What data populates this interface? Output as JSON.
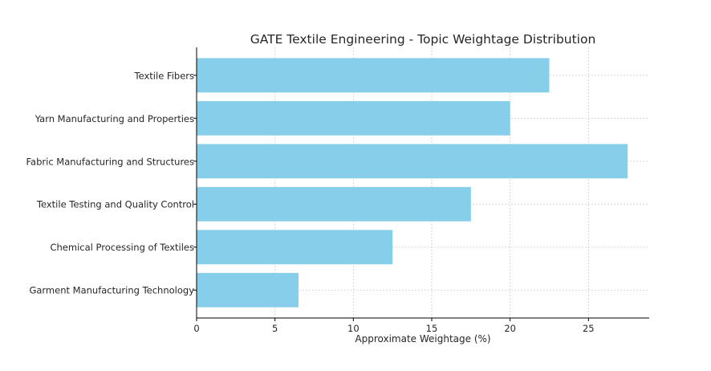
{
  "chart_data": {
    "type": "bar",
    "orientation": "horizontal",
    "title": "GATE Textile Engineering - Topic Weightage Distribution",
    "xlabel": "Approximate Weightage (%)",
    "ylabel": "",
    "categories": [
      "Textile Fibers",
      "Yarn Manufacturing and Properties",
      "Fabric Manufacturing and Structures",
      "Textile Testing and Quality Control",
      "Chemical Processing of Textiles",
      "Garment Manufacturing Technology"
    ],
    "values": [
      22.5,
      20,
      27.5,
      17.5,
      12.5,
      6.5
    ],
    "xlim": [
      0,
      28.875
    ],
    "xticks": [
      "0",
      "5",
      "10",
      "15",
      "20",
      "25"
    ],
    "grid": true,
    "bar_color": "#87CEEB"
  }
}
